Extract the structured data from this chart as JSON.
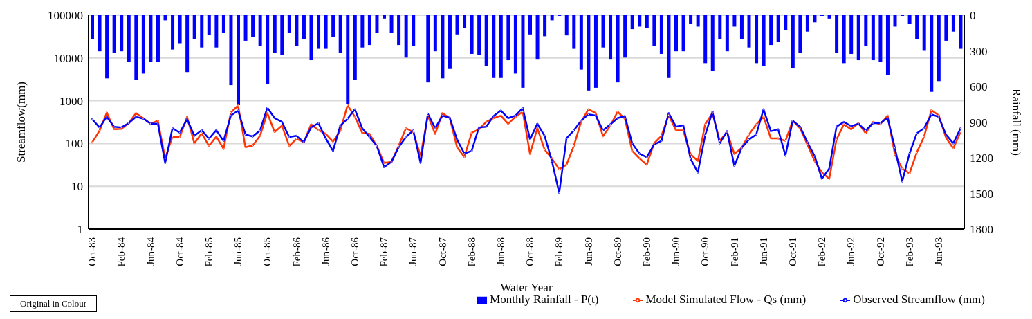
{
  "chart_data": {
    "type": "line",
    "xlabel": "Water Year",
    "ylabel": "Streamflow(mm)",
    "y2label": "Rainfall (mm)",
    "categories": [
      "Oct-83",
      null,
      null,
      null,
      "Feb-84",
      null,
      null,
      null,
      "Jun-84",
      null,
      null,
      null,
      "Oct-84",
      null,
      null,
      null,
      "Feb-85",
      null,
      null,
      null,
      "Jun-85",
      null,
      null,
      null,
      "Oct-85",
      null,
      null,
      null,
      "Feb-86",
      null,
      null,
      null,
      "Jun-86",
      null,
      null,
      null,
      "Oct-86",
      null,
      null,
      null,
      "Feb-87",
      null,
      null,
      null,
      "Jun-87",
      null,
      null,
      null,
      "Oct-87",
      null,
      null,
      null,
      "Feb-88",
      null,
      null,
      null,
      "Jun-88",
      null,
      null,
      null,
      "Oct-88",
      null,
      null,
      null,
      "Feb-89",
      null,
      null,
      null,
      "Jun-89",
      null,
      null,
      null,
      "Oct-89",
      null,
      null,
      null,
      "Feb-90",
      null,
      null,
      null,
      "Jun-90",
      null,
      null,
      null,
      "Oct-90",
      null,
      null,
      null,
      "Feb-91",
      null,
      null,
      null,
      "Jun-91",
      null,
      null,
      null,
      "Oct-91",
      null,
      null,
      null,
      "Feb-92",
      null,
      null,
      null,
      "Jun-92",
      null,
      null,
      null,
      "Oct-92",
      null,
      null,
      null,
      "Feb-93",
      null,
      null,
      null,
      "Jun-93",
      null,
      null,
      null
    ],
    "series": [
      {
        "name": "Monthly Rainfall - P(t)",
        "type": "bar",
        "axis": "y2",
        "color": "#0000ff",
        "values": [
          198,
          304,
          532,
          315,
          304,
          394,
          545,
          492,
          394,
          394,
          43,
          289,
          236,
          479,
          198,
          272,
          166,
          272,
          151,
          589,
          758,
          215,
          183,
          262,
          579,
          315,
          338,
          151,
          262,
          198,
          379,
          283,
          283,
          181,
          315,
          745,
          545,
          272,
          251,
          151,
          28,
          151,
          251,
          357,
          262,
          0,
          566,
          304,
          532,
          447,
          162,
          106,
          326,
          338,
          426,
          523,
          523,
          379,
          492,
          611,
          162,
          368,
          177,
          43,
          6,
          170,
          283,
          458,
          634,
          611,
          272,
          368,
          566,
          357,
          117,
          96,
          106,
          262,
          326,
          523,
          304,
          304,
          74,
          96,
          404,
          468,
          198,
          304,
          96,
          204,
          272,
          404,
          426,
          251,
          226,
          128,
          443,
          315,
          138,
          60,
          6,
          28,
          315,
          404,
          326,
          379,
          262,
          379,
          394,
          502,
          96,
          6,
          74,
          204,
          294,
          645,
          555,
          215,
          138,
          283
        ]
      },
      {
        "name": "Model Simulated Flow - Qs (mm)",
        "color": "#ff3300",
        "values": [
          106,
          199,
          530,
          215,
          220,
          299,
          514,
          392,
          290,
          342,
          45,
          145,
          140,
          420,
          101,
          173,
          88,
          145,
          75,
          530,
          773,
          82,
          90,
          151,
          514,
          186,
          261,
          88,
          129,
          108,
          280,
          205,
          168,
          111,
          199,
          790,
          420,
          178,
          168,
          88,
          35,
          37,
          88,
          228,
          186,
          51,
          449,
          168,
          514,
          392,
          82,
          48,
          178,
          215,
          320,
          392,
          449,
          290,
          420,
          553,
          57,
          228,
          72,
          45,
          25,
          32,
          88,
          320,
          630,
          514,
          148,
          261,
          553,
          380,
          67,
          45,
          32,
          101,
          151,
          460,
          202,
          202,
          56,
          39,
          280,
          514,
          115,
          186,
          57,
          79,
          162,
          280,
          420,
          132,
          132,
          115,
          342,
          228,
          95,
          39,
          21,
          15,
          124,
          280,
          215,
          299,
          173,
          320,
          280,
          449,
          56,
          26,
          20,
          62,
          145,
          600,
          460,
          137,
          77,
          186
        ]
      },
      {
        "name": "Observed Streamflow (mm)",
        "color": "#0000ff",
        "values": [
          371,
          238,
          420,
          247,
          238,
          299,
          420,
          380,
          290,
          290,
          35,
          228,
          180,
          370,
          151,
          205,
          129,
          205,
          115,
          449,
          589,
          162,
          146,
          202,
          690,
          392,
          320,
          142,
          151,
          108,
          238,
          299,
          132,
          67,
          261,
          380,
          630,
          228,
          142,
          88,
          28,
          37,
          82,
          142,
          202,
          35,
          500,
          228,
          449,
          400,
          124,
          58,
          67,
          238,
          247,
          437,
          589,
          392,
          449,
          674,
          124,
          290,
          151,
          39,
          7,
          132,
          202,
          342,
          480,
          449,
          202,
          280,
          392,
          437,
          101,
          58,
          48,
          95,
          115,
          514,
          247,
          267,
          44,
          21,
          155,
          553,
          101,
          194,
          30,
          79,
          124,
          162,
          630,
          194,
          215,
          52,
          342,
          247,
          108,
          51,
          15,
          26,
          247,
          320,
          255,
          290,
          202,
          299,
          299,
          400,
          79,
          13,
          58,
          173,
          228,
          480,
          420,
          162,
          101,
          228
        ]
      }
    ],
    "log": "y",
    "ylim": [
      1,
      100000
    ],
    "yticks": [
      1,
      10,
      100,
      1000,
      10000,
      100000
    ],
    "y2lim": [
      1800,
      0
    ],
    "y2ticks": [
      0,
      300,
      600,
      900,
      1200,
      1500,
      1800
    ],
    "grid": "y",
    "legend": "bottom",
    "marker": "circle",
    "line_style": "solid",
    "annotations": [
      "Original in Colour"
    ]
  }
}
